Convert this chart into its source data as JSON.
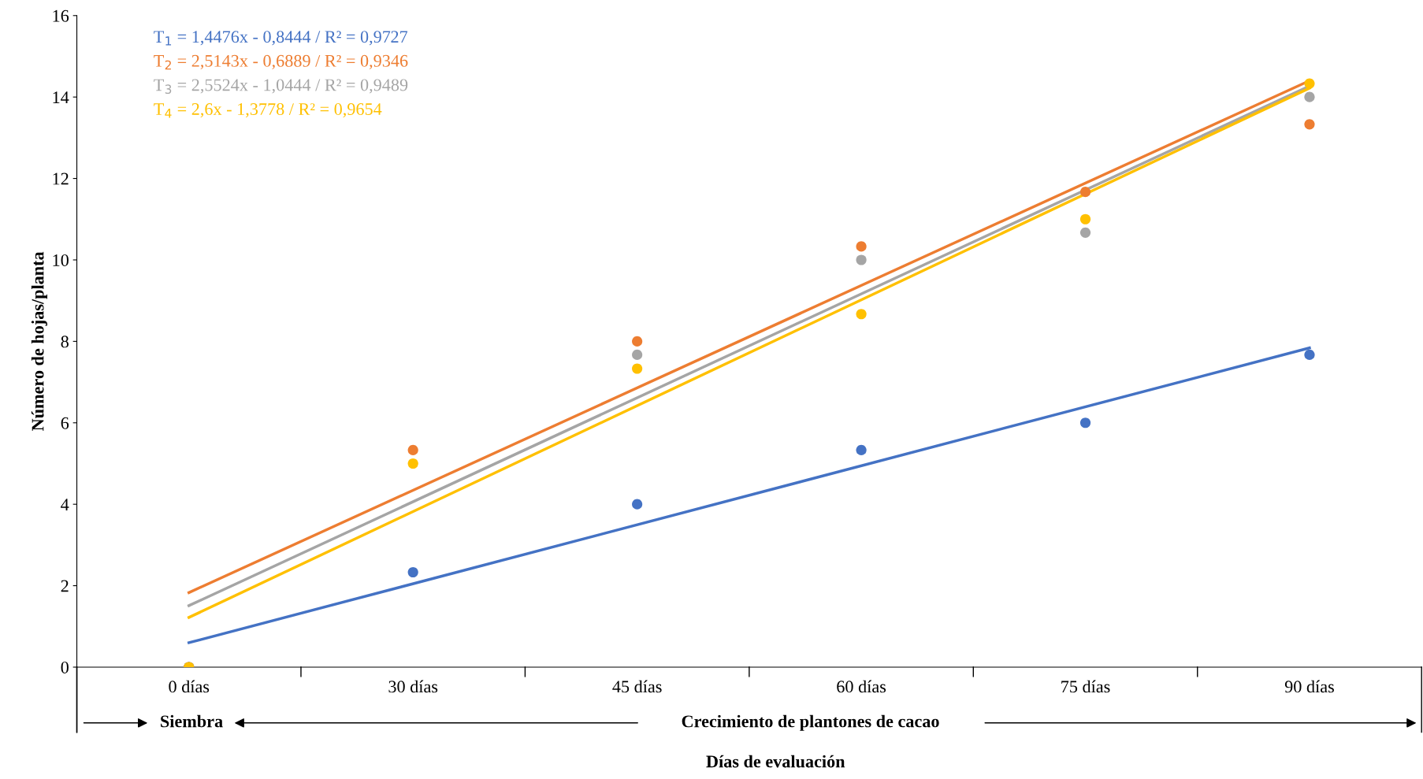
{
  "chart_data": {
    "type": "scatter",
    "ylabel": "Número de hojas/planta",
    "xlabel": "Días de evaluación",
    "categories": [
      "0 días",
      "30 días",
      "45 días",
      "60 días",
      "75 días",
      "90 días"
    ],
    "ylim": [
      0,
      16
    ],
    "yticks": [
      0,
      2,
      4,
      6,
      8,
      10,
      12,
      14,
      16
    ],
    "grid": false,
    "legend": "top left",
    "series": [
      {
        "marker": "circle",
        "color": "#4472c4",
        "values": [
          0,
          2.33,
          4,
          5.33,
          6,
          7.67
        ]
      },
      {
        "marker": "circle",
        "color": "#ed7d31",
        "values": [
          0,
          5.33,
          8,
          10.33,
          11.67,
          13.33
        ]
      },
      {
        "marker": "circle",
        "color": "#a5a5a5",
        "values": [
          0,
          null,
          7.67,
          10,
          10.67,
          14
        ]
      },
      {
        "marker": "circle",
        "color": "#ffc000",
        "values": [
          0,
          5,
          7.33,
          8.67,
          11,
          14.33
        ]
      },
      {
        "type": "line",
        "marker": "none",
        "name": "T$_{1}$ = 1,4476x - 0,8444 / R² = 0,9727",
        "color": "#4472c4",
        "x": [
          "0 días",
          "90 días"
        ],
        "values": [
          0.6,
          7.84
        ]
      },
      {
        "type": "line",
        "marker": "none",
        "name": "T$_{2}$ = 2,5143x - 0,6889 / R² = 0,9346",
        "color": "#ed7d31",
        "x": [
          "0 días",
          "90 días"
        ],
        "values": [
          1.83,
          14.4
        ]
      },
      {
        "type": "line",
        "marker": "none",
        "name": "T$_{3}$ = 2,5524x - 1,0444 / R² = 0,9489",
        "color": "#a5a5a5",
        "x": [
          "0 días",
          "90 días"
        ],
        "values": [
          1.51,
          14.27
        ]
      },
      {
        "type": "line",
        "marker": "none",
        "name": "T$_{4}$ = 2,6x - 1,3778 / R² = 0,9654",
        "color": "#ffc000",
        "x": [
          "0 días",
          "90 días"
        ],
        "values": [
          1.22,
          14.22
        ]
      }
    ],
    "annotations": [
      "Siembra",
      "Crecimiento de plantones de cacao"
    ]
  }
}
